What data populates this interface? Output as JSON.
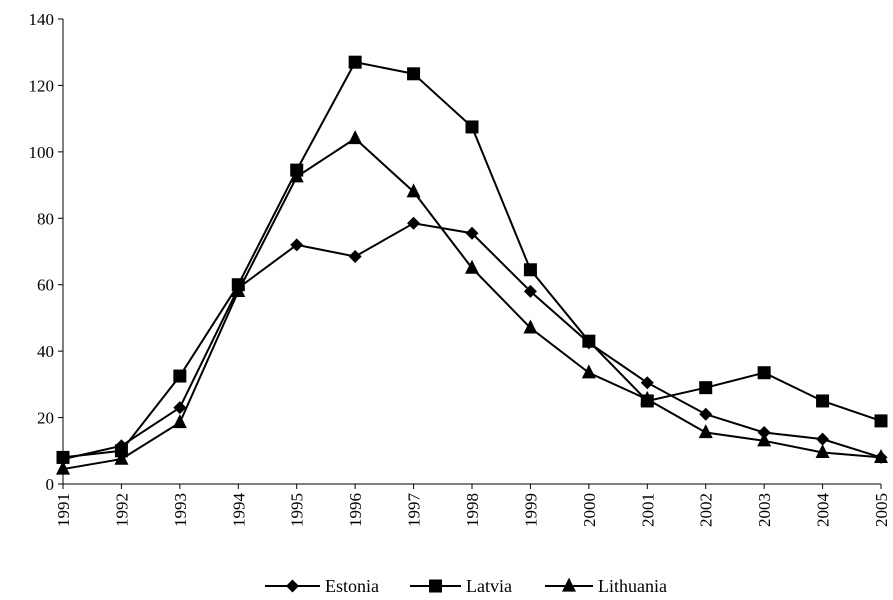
{
  "chart_data": {
    "type": "line",
    "title": "",
    "xlabel": "",
    "ylabel": "",
    "x": [
      "1991",
      "1992",
      "1993",
      "1994",
      "1995",
      "1996",
      "1997",
      "1998",
      "1999",
      "2000",
      "2001",
      "2002",
      "2003",
      "2004",
      "2005"
    ],
    "ylim": [
      0,
      140
    ],
    "yticks": [
      0,
      20,
      40,
      60,
      80,
      100,
      120,
      140
    ],
    "grid": false,
    "legend_position": "bottom",
    "series": [
      {
        "name": "Estonia",
        "marker": "diamond",
        "values": [
          7.5,
          11.5,
          23,
          59,
          72,
          68.5,
          78.5,
          75.5,
          58,
          42.5,
          30.5,
          21,
          15.5,
          13.5,
          8
        ]
      },
      {
        "name": "Latvia",
        "marker": "square",
        "values": [
          8,
          10,
          32.5,
          60,
          94.5,
          127,
          123.5,
          107.5,
          64.5,
          43,
          25,
          29,
          33.5,
          25,
          19
        ]
      },
      {
        "name": "Lithuania",
        "marker": "triangle",
        "values": [
          4.5,
          7.5,
          18.5,
          58,
          92.5,
          104,
          88,
          65,
          47,
          33.5,
          25.5,
          15.5,
          13,
          9.5,
          8
        ]
      }
    ]
  }
}
